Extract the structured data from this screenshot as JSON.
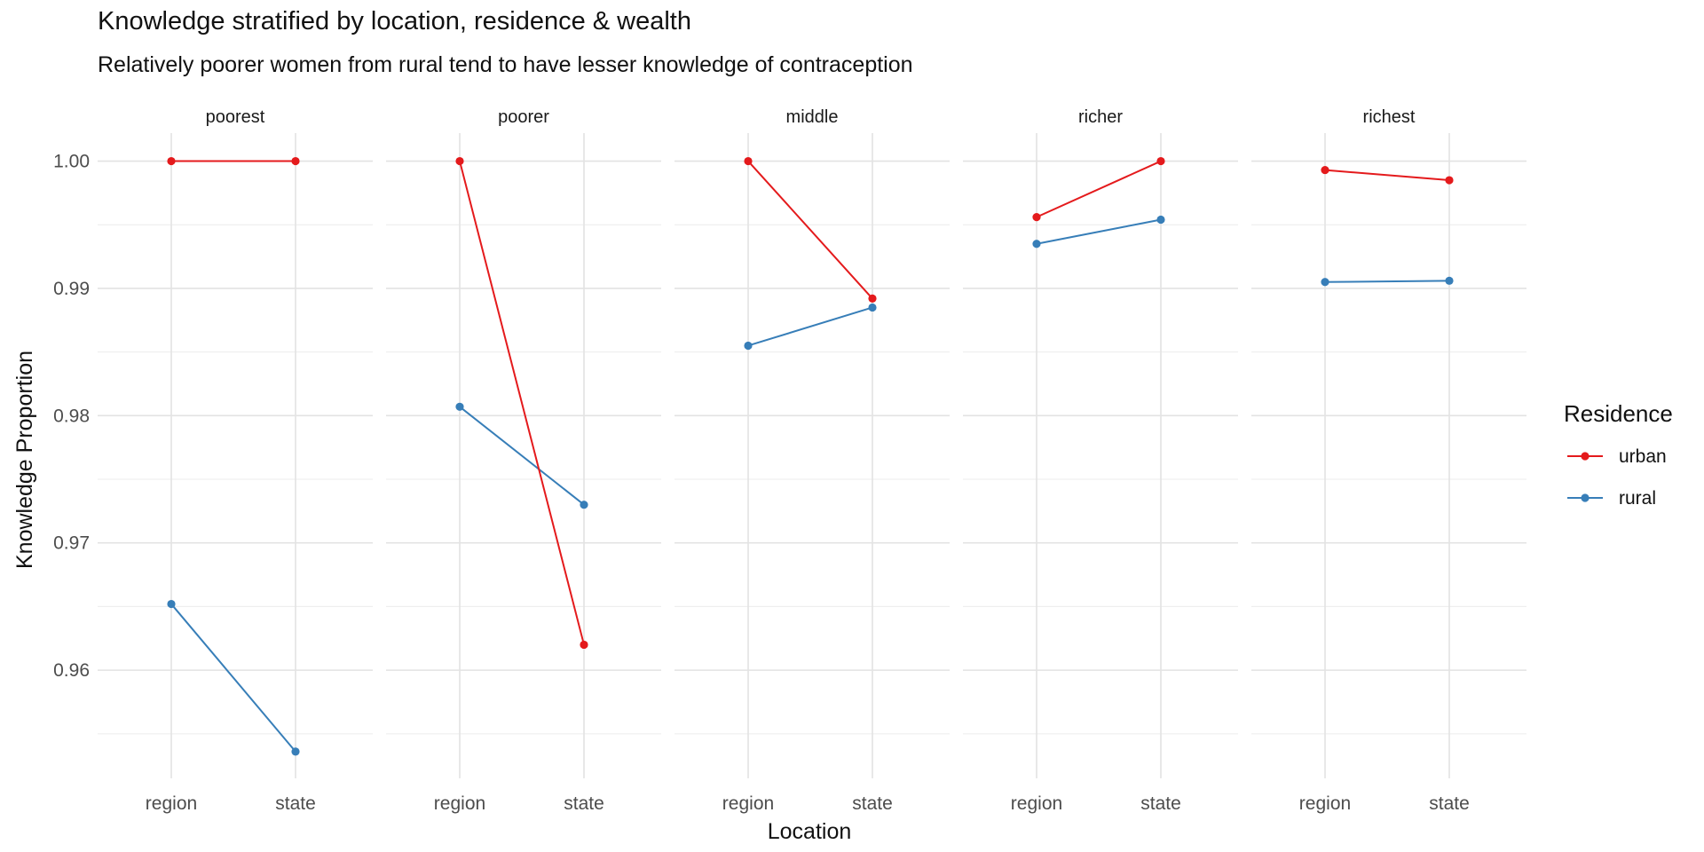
{
  "title": "Knowledge stratified by location, residence & wealth",
  "subtitle": "Relatively poorer women from rural tend to have lesser knowledge of contraception",
  "chart_data": {
    "type": "line",
    "facet_by": "wealth",
    "panels": [
      "poorest",
      "poorer",
      "middle",
      "richer",
      "richest"
    ],
    "categories": [
      "region",
      "state"
    ],
    "xlabel": "Location",
    "ylabel": "Knowledge Proportion",
    "ylim": [
      0.9515,
      1.0022
    ],
    "yticks": [
      0.96,
      0.97,
      0.98,
      0.99,
      1.0
    ],
    "ytick_labels": [
      "0.96",
      "0.97",
      "0.98",
      "0.99",
      "1.00"
    ],
    "grid": true,
    "legend": {
      "title": "Residence",
      "position": "right"
    },
    "series": [
      {
        "name": "urban",
        "color": "#e41a1c",
        "values": [
          [
            1.0,
            1.0
          ],
          [
            1.0,
            0.962
          ],
          [
            1.0,
            0.9892
          ],
          [
            0.9956,
            1.0
          ],
          [
            0.9993,
            0.9985
          ]
        ]
      },
      {
        "name": "rural",
        "color": "#377eb8",
        "values": [
          [
            0.9652,
            0.9536
          ],
          [
            0.9807,
            0.973
          ],
          [
            0.9855,
            0.9885
          ],
          [
            0.9935,
            0.9954
          ],
          [
            0.9905,
            0.9906
          ]
        ]
      }
    ]
  }
}
